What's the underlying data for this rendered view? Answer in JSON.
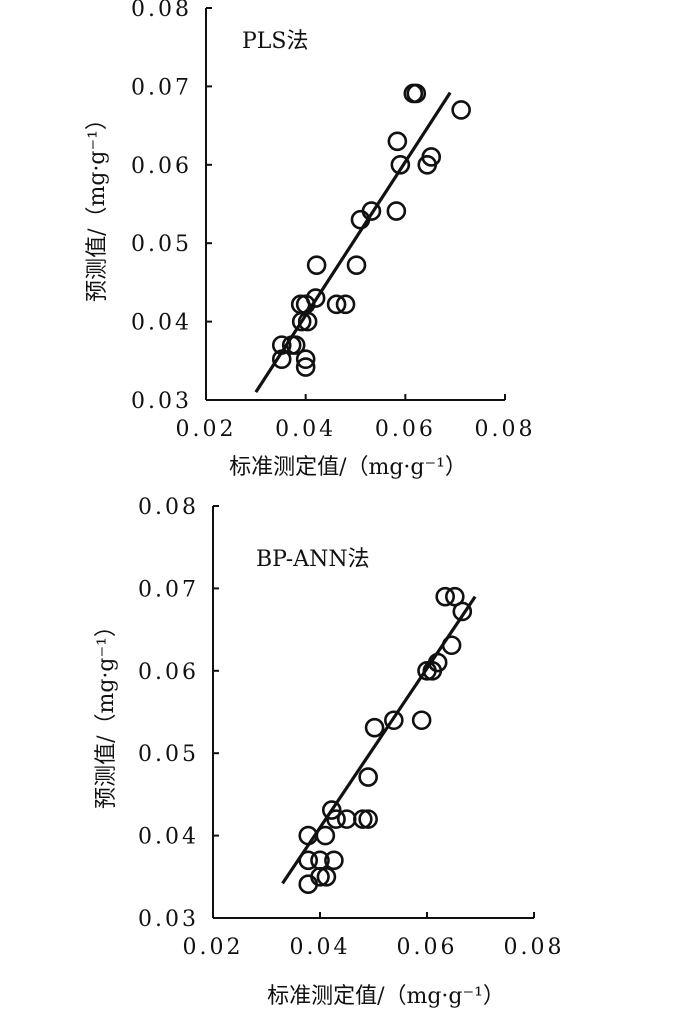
{
  "figure": {
    "background": "#ffffff",
    "ink": "#111111"
  },
  "chart_data": [
    {
      "type": "scatter",
      "title": "PLS法",
      "xlabel": "标准测定值/（mg·g⁻¹）",
      "ylabel": "预测值/（mg·g⁻¹）",
      "xlim": [
        0.02,
        0.08
      ],
      "ylim": [
        0.03,
        0.08
      ],
      "xticks": [
        0.02,
        0.04,
        0.06,
        0.08
      ],
      "xtick_labels": [
        "0.02",
        "0.04",
        "0.06",
        "0.08"
      ],
      "yticks": [
        0.03,
        0.04,
        0.05,
        0.06,
        0.07,
        0.08
      ],
      "ytick_labels": [
        "0.03",
        "0.04",
        "0.05",
        "0.06",
        "0.07",
        "0.08"
      ],
      "grid": false,
      "marker": "open-circle",
      "points": [
        {
          "x": 0.0616,
          "y": 0.0691
        },
        {
          "x": 0.0622,
          "y": 0.0691
        },
        {
          "x": 0.0712,
          "y": 0.067
        },
        {
          "x": 0.0584,
          "y": 0.063
        },
        {
          "x": 0.0652,
          "y": 0.061
        },
        {
          "x": 0.059,
          "y": 0.06
        },
        {
          "x": 0.0644,
          "y": 0.06
        },
        {
          "x": 0.0532,
          "y": 0.0541
        },
        {
          "x": 0.0582,
          "y": 0.0541
        },
        {
          "x": 0.051,
          "y": 0.053
        },
        {
          "x": 0.0422,
          "y": 0.0472
        },
        {
          "x": 0.0502,
          "y": 0.0472
        },
        {
          "x": 0.042,
          "y": 0.043
        },
        {
          "x": 0.039,
          "y": 0.0422
        },
        {
          "x": 0.04,
          "y": 0.0422
        },
        {
          "x": 0.0462,
          "y": 0.0422
        },
        {
          "x": 0.048,
          "y": 0.0422
        },
        {
          "x": 0.0392,
          "y": 0.04
        },
        {
          "x": 0.0404,
          "y": 0.04
        },
        {
          "x": 0.0352,
          "y": 0.037
        },
        {
          "x": 0.0372,
          "y": 0.037
        },
        {
          "x": 0.038,
          "y": 0.037
        },
        {
          "x": 0.0352,
          "y": 0.0352
        },
        {
          "x": 0.04,
          "y": 0.0352
        },
        {
          "x": 0.04,
          "y": 0.0342
        }
      ],
      "fit_line": {
        "x": [
          0.03,
          0.069
        ],
        "y": [
          0.031,
          0.0692
        ]
      }
    },
    {
      "type": "scatter",
      "title": "BP-ANN法",
      "xlabel": "标准测定值/（mg·g⁻¹）",
      "ylabel": "预测值/（mg·g⁻¹）",
      "xlim": [
        0.02,
        0.08
      ],
      "ylim": [
        0.03,
        0.08
      ],
      "xticks": [
        0.02,
        0.04,
        0.06,
        0.08
      ],
      "xtick_labels": [
        "0.02",
        "0.04",
        "0.06",
        "0.08"
      ],
      "yticks": [
        0.03,
        0.04,
        0.05,
        0.06,
        0.07,
        0.08
      ],
      "ytick_labels": [
        "0.03",
        "0.04",
        "0.05",
        "0.06",
        "0.07",
        "0.08"
      ],
      "grid": false,
      "marker": "open-circle",
      "points": [
        {
          "x": 0.0634,
          "y": 0.069
        },
        {
          "x": 0.0652,
          "y": 0.069
        },
        {
          "x": 0.0666,
          "y": 0.0672
        },
        {
          "x": 0.0646,
          "y": 0.0631
        },
        {
          "x": 0.062,
          "y": 0.061
        },
        {
          "x": 0.06,
          "y": 0.06
        },
        {
          "x": 0.061,
          "y": 0.06
        },
        {
          "x": 0.0538,
          "y": 0.054
        },
        {
          "x": 0.059,
          "y": 0.054
        },
        {
          "x": 0.0502,
          "y": 0.0531
        },
        {
          "x": 0.049,
          "y": 0.0471
        },
        {
          "x": 0.0422,
          "y": 0.0431
        },
        {
          "x": 0.043,
          "y": 0.042
        },
        {
          "x": 0.045,
          "y": 0.042
        },
        {
          "x": 0.048,
          "y": 0.042
        },
        {
          "x": 0.049,
          "y": 0.042
        },
        {
          "x": 0.0378,
          "y": 0.04
        },
        {
          "x": 0.041,
          "y": 0.04
        },
        {
          "x": 0.0378,
          "y": 0.037
        },
        {
          "x": 0.04,
          "y": 0.037
        },
        {
          "x": 0.0426,
          "y": 0.037
        },
        {
          "x": 0.04,
          "y": 0.035
        },
        {
          "x": 0.0412,
          "y": 0.035
        },
        {
          "x": 0.0378,
          "y": 0.0341
        }
      ],
      "fit_line": {
        "x": [
          0.033,
          0.069
        ],
        "y": [
          0.0342,
          0.069
        ]
      }
    }
  ]
}
